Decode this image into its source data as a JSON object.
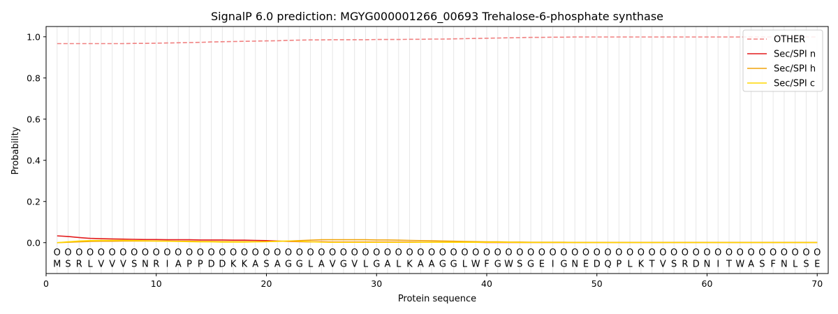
{
  "chart_data": {
    "type": "line",
    "title": "SignalP 6.0 prediction: MGYG000001266_00693 Trehalose-6-phosphate synthase",
    "xlabel": "Protein sequence",
    "ylabel": "Probability",
    "xlim": [
      0,
      71
    ],
    "ylim": [
      -0.15,
      1.05
    ],
    "xticks": [
      0,
      10,
      20,
      30,
      40,
      50,
      60,
      70
    ],
    "yticks": [
      0.0,
      0.2,
      0.4,
      0.6,
      0.8,
      1.0
    ],
    "ytick_labels": [
      "0.0",
      "0.2",
      "0.4",
      "0.6",
      "0.8",
      "1.0"
    ],
    "grid": "vertical lines at each residue",
    "legend_position": "top-right",
    "sequence": "MSRLVVVSNRIAPPDDKKASAGGLAVGVLGALKAAGGLWFGWSGEIGNEDQPLKTVSRDNITWASFNLSE",
    "region_labels": "OOOOOOOOOOOOOOOOOOOOOOOOOOOOOOOOOOOOOOOOOOOOOOOOOOOOOOOOOOOOOOOOOOOOOO",
    "series": [
      {
        "name": "OTHER",
        "color": "#f08080",
        "dash": "dashed",
        "values": [
          0.967,
          0.967,
          0.967,
          0.967,
          0.967,
          0.967,
          0.967,
          0.968,
          0.968,
          0.969,
          0.97,
          0.971,
          0.972,
          0.973,
          0.975,
          0.976,
          0.977,
          0.978,
          0.979,
          0.98,
          0.981,
          0.983,
          0.984,
          0.985,
          0.985,
          0.986,
          0.986,
          0.986,
          0.986,
          0.987,
          0.987,
          0.987,
          0.988,
          0.988,
          0.989,
          0.989,
          0.99,
          0.991,
          0.992,
          0.993,
          0.994,
          0.995,
          0.996,
          0.997,
          0.997,
          0.998,
          0.998,
          0.999,
          0.999,
          0.999,
          0.999,
          0.999,
          0.999,
          0.999,
          0.999,
          0.999,
          0.999,
          0.999,
          0.999,
          0.999,
          0.999,
          0.999,
          0.999,
          0.999,
          0.999,
          0.999,
          0.999,
          0.999,
          0.999,
          0.999
        ]
      },
      {
        "name": "Sec/SPI n",
        "color": "#e31a1c",
        "dash": "solid",
        "values": [
          0.033,
          0.03,
          0.025,
          0.021,
          0.019,
          0.018,
          0.017,
          0.016,
          0.015,
          0.015,
          0.014,
          0.014,
          0.014,
          0.013,
          0.013,
          0.013,
          0.012,
          0.012,
          0.011,
          0.01,
          0.008,
          0.006,
          0.005,
          0.004,
          0.004,
          0.003,
          0.003,
          0.003,
          0.003,
          0.003,
          0.003,
          0.003,
          0.003,
          0.002,
          0.002,
          0.002,
          0.002,
          0.002,
          0.002,
          0.001,
          0.001,
          0.001,
          0.001,
          0.001,
          0.001,
          0.001,
          0.001,
          0.001,
          0.001,
          0.001,
          0.001,
          0.001,
          0.001,
          0.001,
          0.001,
          0.001,
          0.001,
          0.001,
          0.001,
          0.001,
          0.001,
          0.001,
          0.001,
          0.001,
          0.001,
          0.001,
          0.001,
          0.001,
          0.001,
          0.001
        ]
      },
      {
        "name": "Sec/SPI h",
        "color": "#f0a30a",
        "dash": "solid",
        "values": [
          0.0,
          0.002,
          0.004,
          0.006,
          0.007,
          0.007,
          0.008,
          0.008,
          0.008,
          0.008,
          0.008,
          0.007,
          0.007,
          0.006,
          0.006,
          0.005,
          0.005,
          0.005,
          0.005,
          0.005,
          0.006,
          0.008,
          0.01,
          0.012,
          0.014,
          0.014,
          0.014,
          0.014,
          0.014,
          0.013,
          0.013,
          0.012,
          0.011,
          0.01,
          0.009,
          0.008,
          0.007,
          0.006,
          0.005,
          0.004,
          0.004,
          0.003,
          0.003,
          0.002,
          0.002,
          0.002,
          0.002,
          0.001,
          0.001,
          0.001,
          0.001,
          0.001,
          0.001,
          0.001,
          0.001,
          0.001,
          0.001,
          0.001,
          0.001,
          0.001,
          0.001,
          0.001,
          0.001,
          0.001,
          0.001,
          0.001,
          0.001,
          0.001,
          0.001,
          0.001
        ]
      },
      {
        "name": "Sec/SPI c",
        "color": "#ffd700",
        "dash": "solid",
        "values": [
          0.0,
          0.004,
          0.008,
          0.01,
          0.011,
          0.011,
          0.011,
          0.01,
          0.009,
          0.008,
          0.007,
          0.006,
          0.005,
          0.004,
          0.004,
          0.003,
          0.003,
          0.003,
          0.004,
          0.005,
          0.007,
          0.008,
          0.006,
          0.004,
          0.003,
          0.002,
          0.002,
          0.002,
          0.002,
          0.002,
          0.002,
          0.002,
          0.002,
          0.002,
          0.002,
          0.002,
          0.002,
          0.002,
          0.002,
          0.002,
          0.002,
          0.002,
          0.001,
          0.001,
          0.001,
          0.001,
          0.001,
          0.001,
          0.001,
          0.001,
          0.001,
          0.001,
          0.001,
          0.001,
          0.001,
          0.001,
          0.001,
          0.001,
          0.001,
          0.001,
          0.001,
          0.001,
          0.001,
          0.001,
          0.001,
          0.001,
          0.001,
          0.001,
          0.001,
          0.001
        ]
      }
    ]
  }
}
